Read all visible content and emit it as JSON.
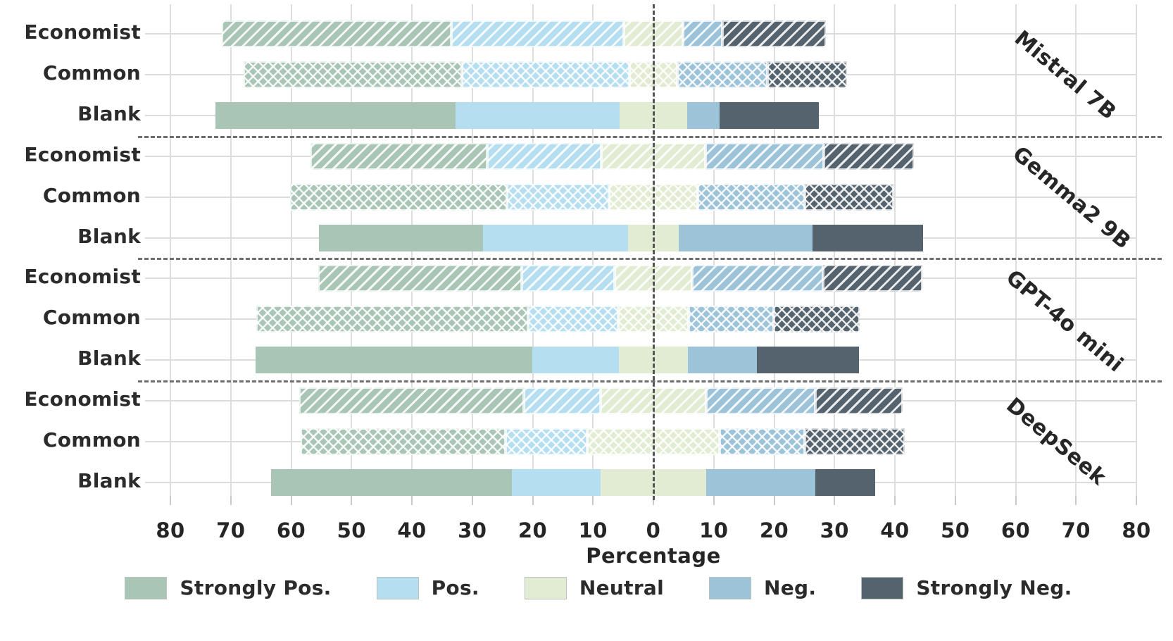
{
  "chart_data": {
    "type": "bar",
    "subtype": "diverging-stacked-horizontal",
    "xlabel": "Percentage",
    "axis_range": [
      -80,
      80
    ],
    "grid": "on",
    "x_tick_labels": [
      "80",
      "70",
      "60",
      "50",
      "40",
      "30",
      "20",
      "10",
      "0",
      "10",
      "20",
      "30",
      "40",
      "50",
      "60",
      "70",
      "80"
    ],
    "value_order": [
      "Strongly Pos.",
      "Pos.",
      "Neutral",
      "Neg.",
      "Strongly Neg."
    ],
    "neutral_centered_on_zero": true,
    "legend": [
      {
        "label": "Strongly Pos.",
        "color": "#a9c5b5"
      },
      {
        "label": "Pos.",
        "color": "#b5def0"
      },
      {
        "label": "Neutral",
        "color": "#e2ecd3"
      },
      {
        "label": "Neg.",
        "color": "#9dc3d9"
      },
      {
        "label": "Strongly Neg.",
        "color": "#54636d"
      }
    ],
    "hatch_legend": {
      "Economist": "diagonal",
      "Common": "cross",
      "Blank": "solid"
    },
    "groups": [
      {
        "model": "Mistral 7B",
        "rows": [
          {
            "condition": "Economist",
            "hatch": "diagonal",
            "values": [
              38.0,
              28.6,
              9.7,
              6.6,
              17.1
            ]
          },
          {
            "condition": "Common",
            "hatch": "cross",
            "values": [
              36.2,
              27.7,
              8.0,
              14.9,
              13.2
            ]
          },
          {
            "condition": "Blank",
            "hatch": "solid",
            "values": [
              39.8,
              27.1,
              11.3,
              5.3,
              16.5
            ]
          }
        ]
      },
      {
        "model": "Gemma2 9B",
        "rows": [
          {
            "condition": "Economist",
            "hatch": "diagonal",
            "values": [
              29.3,
              18.9,
              17.2,
              19.6,
              15.0
            ]
          },
          {
            "condition": "Common",
            "hatch": "cross",
            "values": [
              35.9,
              16.9,
              14.8,
              17.7,
              14.7
            ]
          },
          {
            "condition": "Blank",
            "hatch": "solid",
            "values": [
              27.1,
              24.1,
              8.3,
              22.2,
              18.3
            ]
          }
        ]
      },
      {
        "model": "GPT-4o mini",
        "rows": [
          {
            "condition": "Economist",
            "hatch": "diagonal",
            "values": [
              33.7,
              15.4,
              12.8,
              21.7,
              16.4
            ]
          },
          {
            "condition": "Common",
            "hatch": "cross",
            "values": [
              45.1,
              14.9,
              11.6,
              14.1,
              14.3
            ]
          },
          {
            "condition": "Blank",
            "hatch": "solid",
            "values": [
              45.8,
              14.4,
              11.4,
              11.4,
              17.0
            ]
          }
        ]
      },
      {
        "model": "DeepSeek",
        "rows": [
          {
            "condition": "Economist",
            "hatch": "diagonal",
            "values": [
              37.3,
              12.7,
              17.4,
              18.1,
              14.5
            ]
          },
          {
            "condition": "Common",
            "hatch": "cross",
            "values": [
              33.9,
              13.5,
              22.0,
              14.1,
              16.5
            ]
          },
          {
            "condition": "Blank",
            "hatch": "solid",
            "values": [
              39.9,
              14.7,
              17.4,
              18.1,
              9.9
            ]
          }
        ]
      }
    ]
  }
}
